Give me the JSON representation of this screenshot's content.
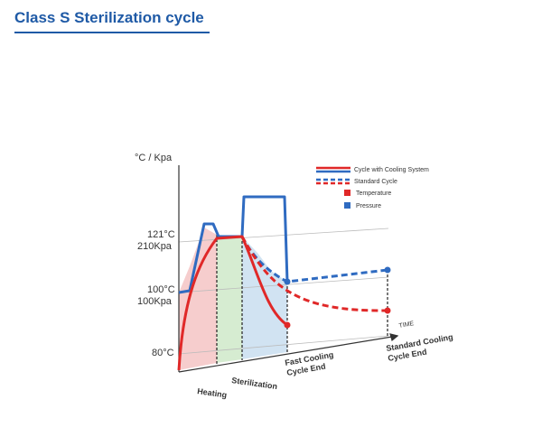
{
  "page": {
    "heading": "Class S Sterilization cycle"
  },
  "diagram": {
    "axis_unit": "°C / Kpa",
    "levels": [
      {
        "temp": "121°C",
        "pressure": "210Kpa"
      },
      {
        "temp": "100°C",
        "pressure": "100Kpa"
      },
      {
        "temp": "80°C",
        "pressure": ""
      }
    ],
    "time_label": "TIME",
    "phases": [
      "Heating",
      "Sterilization"
    ],
    "fast_end": [
      "Fast Cooling",
      "Cycle End"
    ],
    "standard_end": [
      "Standard Cooling",
      "Cycle End"
    ],
    "legend": {
      "cooling_system": "Cycle with Cooling System",
      "standard_cycle": "Standard Cycle",
      "temperature": "Temperature",
      "pressure": "Pressure"
    },
    "colors": {
      "temperature": "#e02828",
      "pressure": "#2f6bc1",
      "heading": "#1f5aa6",
      "heating_fill": "#f4c4c4",
      "sterilization_fill": "#cfe9c9",
      "cooling_fill": "#c9def0"
    }
  }
}
